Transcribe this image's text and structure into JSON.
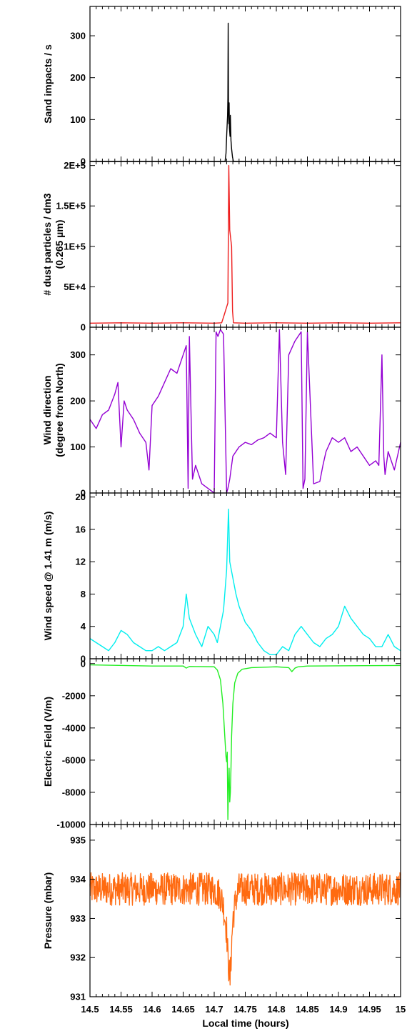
{
  "figure": {
    "xlabel": "Local time (hours)",
    "xlim": [
      14.5,
      15.0
    ],
    "x_ticks": [
      "14.5",
      "14.55",
      "14.6",
      "14.65",
      "14.7",
      "14.75",
      "14.8",
      "14.85",
      "14.9",
      "14.95",
      "15"
    ]
  },
  "chart_data": [
    {
      "type": "line",
      "name": "sand",
      "ylabel": "Sand impacts / s",
      "ylabel2": "",
      "ylim": [
        0,
        370
      ],
      "y_ticks": [
        0,
        100,
        200,
        300
      ],
      "y_tick_labels": [
        "0",
        "100",
        "200",
        "300"
      ],
      "color": "#000000",
      "x": [
        14.5,
        14.7175,
        14.719,
        14.72,
        14.7215,
        14.722,
        14.7225,
        14.723,
        14.7235,
        14.724,
        14.7245,
        14.725,
        14.7255,
        14.726,
        14.727,
        14.728,
        14.7295,
        14.731,
        15.0
      ],
      "y": [
        0,
        0,
        20,
        60,
        110,
        150,
        330,
        120,
        90,
        140,
        80,
        70,
        60,
        110,
        50,
        30,
        10,
        0,
        0
      ]
    },
    {
      "type": "line",
      "name": "dust",
      "ylabel": "# dust particles / dm3",
      "ylabel2": "(0.265 µm)",
      "ylim": [
        0,
        205000
      ],
      "y_ticks": [
        0,
        50000,
        100000,
        150000,
        200000
      ],
      "y_tick_labels": [
        "0",
        "5E+4",
        "1E+5",
        "1.5E+5",
        "2E+5"
      ],
      "color": "#ee1c1c",
      "x": [
        14.5,
        14.55,
        14.6,
        14.65,
        14.7,
        14.712,
        14.716,
        14.72,
        14.722,
        14.7235,
        14.725,
        14.7265,
        14.728,
        14.7295,
        14.731,
        14.75,
        14.8,
        14.85,
        14.9,
        14.95,
        15.0
      ],
      "y": [
        5000,
        5500,
        5000,
        5500,
        5000,
        5500,
        15000,
        25000,
        30000,
        200000,
        120000,
        110000,
        100000,
        20000,
        5500,
        5000,
        5500,
        5000,
        5500,
        5000,
        5500
      ]
    },
    {
      "type": "line",
      "name": "wind_direction",
      "ylabel": "Wind direction",
      "ylabel2": "(degree from North)",
      "ylim": [
        0,
        360
      ],
      "y_ticks": [
        0,
        100,
        200,
        300
      ],
      "y_tick_labels": [
        "0",
        "100",
        "200",
        "300"
      ],
      "color": "#9400d3",
      "x": [
        14.5,
        14.51,
        14.52,
        14.53,
        14.54,
        14.545,
        14.55,
        14.555,
        14.56,
        14.57,
        14.58,
        14.59,
        14.595,
        14.6,
        14.61,
        14.62,
        14.63,
        14.64,
        14.65,
        14.655,
        14.658,
        14.66,
        14.665,
        14.67,
        14.68,
        14.69,
        14.7,
        14.703,
        14.706,
        14.71,
        14.715,
        14.72,
        14.722,
        14.725,
        14.73,
        14.74,
        14.75,
        14.76,
        14.77,
        14.78,
        14.79,
        14.8,
        14.805,
        14.81,
        14.815,
        14.82,
        14.83,
        14.84,
        14.843,
        14.846,
        14.85,
        14.86,
        14.87,
        14.875,
        14.88,
        14.89,
        14.9,
        14.91,
        14.92,
        14.93,
        14.94,
        14.95,
        14.96,
        14.965,
        14.97,
        14.973,
        14.975,
        14.98,
        14.99,
        15.0
      ],
      "y": [
        160,
        140,
        170,
        180,
        215,
        240,
        100,
        200,
        180,
        160,
        130,
        110,
        50,
        190,
        210,
        240,
        270,
        260,
        300,
        320,
        10,
        340,
        30,
        60,
        20,
        10,
        0,
        350,
        340,
        355,
        345,
        0,
        10,
        30,
        80,
        100,
        110,
        105,
        115,
        120,
        130,
        120,
        355,
        110,
        40,
        300,
        330,
        350,
        10,
        30,
        350,
        20,
        25,
        60,
        90,
        120,
        110,
        120,
        90,
        100,
        80,
        60,
        70,
        60,
        300,
        80,
        40,
        90,
        50,
        110
      ]
    },
    {
      "type": "line",
      "name": "wind_speed",
      "ylabel": "Wind speed @ 1.41 m (m/s)",
      "ylabel2": "",
      "ylim": [
        0,
        20.5
      ],
      "y_ticks": [
        0,
        4,
        8,
        12,
        16,
        20
      ],
      "y_tick_labels": [
        "0",
        "4",
        "8",
        "12",
        "16",
        "20"
      ],
      "color": "#00eeee",
      "x": [
        14.5,
        14.51,
        14.52,
        14.53,
        14.54,
        14.55,
        14.56,
        14.57,
        14.58,
        14.59,
        14.6,
        14.61,
        14.62,
        14.63,
        14.64,
        14.65,
        14.655,
        14.66,
        14.67,
        14.68,
        14.69,
        14.7,
        14.705,
        14.71,
        14.715,
        14.72,
        14.723,
        14.725,
        14.73,
        14.735,
        14.74,
        14.75,
        14.76,
        14.77,
        14.78,
        14.79,
        14.8,
        14.81,
        14.82,
        14.83,
        14.84,
        14.85,
        14.86,
        14.87,
        14.88,
        14.89,
        14.9,
        14.91,
        14.92,
        14.93,
        14.94,
        14.95,
        14.96,
        14.97,
        14.98,
        14.99,
        15.0
      ],
      "y": [
        2.5,
        2.0,
        1.5,
        1.0,
        2.0,
        3.5,
        3.0,
        2.0,
        1.5,
        1.0,
        1.0,
        1.5,
        1.0,
        1.5,
        2.0,
        4.0,
        8.0,
        5.0,
        3.0,
        1.5,
        4.0,
        3.0,
        2.0,
        4.0,
        6.0,
        11.0,
        18.5,
        12.0,
        10.0,
        8.0,
        6.5,
        4.5,
        3.5,
        2.0,
        1.0,
        0.5,
        0.5,
        1.5,
        1.0,
        3.0,
        4.0,
        3.0,
        2.0,
        1.5,
        2.5,
        3.0,
        4.0,
        6.5,
        5.0,
        4.0,
        3.0,
        2.5,
        1.5,
        1.5,
        3.0,
        1.5,
        1.0
      ]
    },
    {
      "type": "line",
      "name": "electric_field",
      "ylabel": "Electric Field (V/m)",
      "ylabel2": "",
      "ylim": [
        -10000,
        300
      ],
      "y_ticks": [
        -10000,
        -8000,
        -6000,
        -4000,
        -2000,
        0
      ],
      "y_tick_labels": [
        "-10000",
        "-8000",
        "-6000",
        "-4000",
        "-2000",
        "0"
      ],
      "color": "#22ee22",
      "x": [
        14.5,
        14.6,
        14.65,
        14.655,
        14.66,
        14.7,
        14.705,
        14.71,
        14.714,
        14.717,
        14.719,
        14.72,
        14.721,
        14.722,
        14.723,
        14.724,
        14.725,
        14.726,
        14.727,
        14.728,
        14.73,
        14.733,
        14.738,
        14.745,
        14.76,
        14.8,
        14.82,
        14.825,
        14.83,
        14.835,
        14.85,
        15.0
      ],
      "y": [
        -80,
        -150,
        -150,
        -280,
        -180,
        -200,
        -400,
        -1000,
        -2500,
        -4500,
        -5800,
        -6100,
        -5500,
        -9700,
        -7500,
        -6500,
        -8600,
        -8000,
        -6500,
        -4500,
        -2500,
        -1200,
        -600,
        -350,
        -250,
        -200,
        -250,
        -500,
        -280,
        -200,
        -150,
        -120
      ]
    },
    {
      "type": "line",
      "name": "pressure",
      "ylabel": "Pressure (mbar)",
      "ylabel2": "",
      "ylim": [
        931,
        935.4
      ],
      "y_ticks": [
        931,
        932,
        933,
        934,
        935
      ],
      "y_tick_labels": [
        "931",
        "932",
        "933",
        "934",
        "935"
      ],
      "color": "#ff6a10",
      "x": [
        14.5,
        14.7,
        14.71,
        14.715,
        14.72,
        14.722,
        14.7255,
        14.728,
        14.73,
        14.735,
        14.74,
        15.0
      ],
      "y": [
        933.75,
        933.75,
        933.6,
        933.3,
        932.7,
        932.0,
        931.4,
        932.3,
        933.0,
        933.5,
        933.75,
        933.75
      ],
      "noise": 0.42
    }
  ]
}
